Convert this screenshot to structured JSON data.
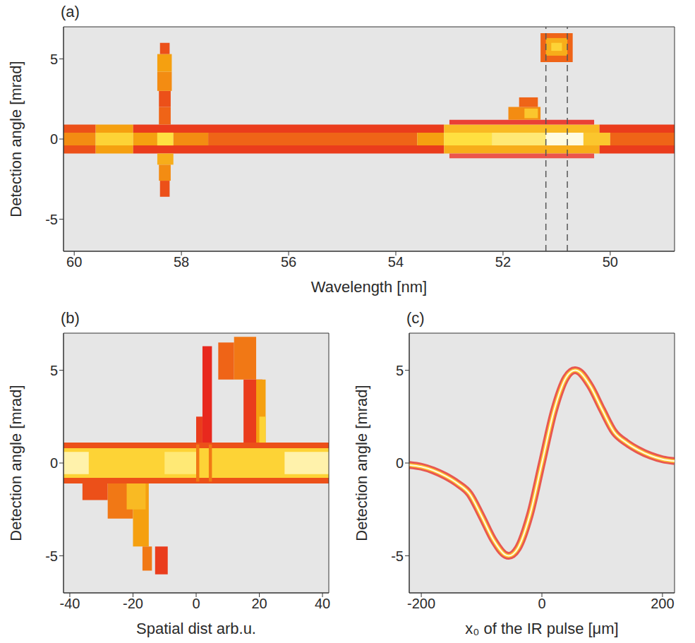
{
  "chart_data": [
    {
      "type": "heatmap",
      "panel_label": "(a)",
      "x_label": "Wavelength [nm]",
      "y_label": "Detection angle [mrad]",
      "xlim": [
        60.2,
        48.8
      ],
      "ylim": [
        -7,
        7
      ],
      "xticks": [
        60,
        58,
        56,
        54,
        52,
        50
      ],
      "yticks": [
        -5,
        0,
        5
      ],
      "zlim": [
        0,
        1
      ],
      "grid": false,
      "vlines": [
        51.2,
        50.8
      ],
      "cells": [
        [
          60.2,
          59.6,
          -0.9,
          -0.4,
          0.4
        ],
        [
          59.6,
          58.9,
          -0.9,
          -0.4,
          0.6
        ],
        [
          58.9,
          53.1,
          -0.9,
          -0.4,
          0.35
        ],
        [
          53.1,
          50.2,
          -0.9,
          -0.4,
          0.65
        ],
        [
          50.2,
          48.8,
          -0.9,
          -0.4,
          0.35
        ],
        [
          60.2,
          59.6,
          0.4,
          0.9,
          0.4
        ],
        [
          59.6,
          58.9,
          0.4,
          0.9,
          0.6
        ],
        [
          58.9,
          53.1,
          0.4,
          0.9,
          0.35
        ],
        [
          53.1,
          50.2,
          0.4,
          0.9,
          0.7
        ],
        [
          50.2,
          48.8,
          0.4,
          0.9,
          0.35
        ],
        [
          60.2,
          59.6,
          -0.4,
          0.4,
          0.55
        ],
        [
          59.6,
          58.9,
          -0.4,
          0.4,
          0.8
        ],
        [
          58.9,
          58.45,
          -0.4,
          0.4,
          0.6
        ],
        [
          58.45,
          58.15,
          -0.4,
          0.4,
          0.85
        ],
        [
          58.15,
          57.5,
          -0.4,
          0.4,
          0.55
        ],
        [
          57.5,
          53.6,
          -0.4,
          0.4,
          0.45
        ],
        [
          53.6,
          53.1,
          -0.4,
          0.4,
          0.6
        ],
        [
          53.1,
          52.2,
          -0.4,
          0.4,
          0.85
        ],
        [
          52.2,
          51.2,
          -0.4,
          0.4,
          0.9
        ],
        [
          51.2,
          50.5,
          -0.4,
          0.4,
          1.0
        ],
        [
          50.5,
          50.0,
          -0.4,
          0.4,
          0.75
        ],
        [
          50.0,
          48.8,
          -0.4,
          0.4,
          0.45
        ],
        [
          53.0,
          50.3,
          0.9,
          1.2,
          0.25
        ],
        [
          53.0,
          50.3,
          -1.2,
          -0.9,
          0.2
        ],
        [
          58.42,
          58.2,
          0.9,
          2.0,
          0.45
        ],
        [
          58.42,
          58.2,
          2.0,
          3.0,
          0.4
        ],
        [
          58.45,
          58.18,
          3.0,
          4.2,
          0.55
        ],
        [
          58.45,
          58.18,
          4.2,
          5.3,
          0.6
        ],
        [
          58.4,
          58.22,
          5.3,
          6.0,
          0.4
        ],
        [
          58.45,
          58.15,
          -1.6,
          -0.9,
          0.65
        ],
        [
          58.42,
          58.2,
          -2.6,
          -1.6,
          0.55
        ],
        [
          58.4,
          58.22,
          -3.6,
          -2.6,
          0.4
        ],
        [
          51.9,
          51.3,
          1.2,
          2.0,
          0.55
        ],
        [
          51.7,
          51.35,
          2.0,
          2.6,
          0.45
        ],
        [
          51.6,
          51.35,
          1.3,
          1.9,
          0.75
        ],
        [
          51.3,
          50.7,
          4.8,
          6.6,
          0.45
        ],
        [
          51.2,
          50.8,
          5.2,
          6.3,
          0.65
        ],
        [
          51.1,
          50.9,
          5.5,
          6.0,
          0.8
        ]
      ]
    },
    {
      "type": "heatmap",
      "panel_label": "(b)",
      "x_label": "Spatial dist arb.u.",
      "y_label": "Detection angle [mrad]",
      "xlim": [
        -42,
        42
      ],
      "ylim": [
        -7,
        7
      ],
      "xticks": [
        -40,
        -20,
        0,
        20,
        40
      ],
      "yticks": [
        -5,
        0,
        5
      ],
      "zlim": [
        0,
        1
      ],
      "grid": false,
      "cells": [
        [
          -42,
          42,
          -1.1,
          -0.8,
          0.4
        ],
        [
          -42,
          42,
          0.8,
          1.1,
          0.4
        ],
        [
          -42,
          42,
          -0.8,
          0.8,
          0.8
        ],
        [
          -42,
          -34,
          -0.6,
          0.6,
          0.95
        ],
        [
          -10,
          0,
          -0.6,
          0.6,
          0.9
        ],
        [
          28,
          42,
          -0.6,
          0.6,
          0.95
        ],
        [
          0,
          1,
          -1,
          1,
          0.5
        ],
        [
          4,
          5,
          -1,
          1,
          0.5
        ],
        [
          -36,
          -28,
          -2,
          -1.1,
          0.4
        ],
        [
          -28,
          -20,
          -3,
          -1.1,
          0.5
        ],
        [
          -20,
          -15,
          -4.5,
          -1.1,
          0.6
        ],
        [
          -17,
          -14,
          -5.8,
          -4.5,
          0.5
        ],
        [
          -13,
          -9,
          -6,
          -4.5,
          0.35
        ],
        [
          -22,
          -16,
          -2.5,
          -1.1,
          0.7
        ],
        [
          0,
          2,
          1.1,
          2.5,
          0.35
        ],
        [
          2,
          5,
          1.1,
          6.3,
          0.3
        ],
        [
          7,
          12,
          4.5,
          6.5,
          0.45
        ],
        [
          12,
          19,
          4.5,
          6.8,
          0.5
        ],
        [
          15,
          21,
          1.1,
          4.5,
          0.35
        ],
        [
          19,
          22,
          1.1,
          4.5,
          0.6
        ],
        [
          20,
          22,
          1.1,
          2.5,
          0.8
        ]
      ]
    },
    {
      "type": "line",
      "panel_label": "(c)",
      "x_label": "x₀ of the IR pulse [μm]",
      "y_label": "Detection angle [mrad]",
      "xlim": [
        -220,
        220
      ],
      "ylim": [
        -7,
        7
      ],
      "xticks": [
        -200,
        0,
        200
      ],
      "yticks": [
        -5,
        0,
        5
      ],
      "grid": false,
      "color": "#e8281e",
      "x": [
        -220,
        -200,
        -180,
        -160,
        -140,
        -120,
        -100,
        -80,
        -60,
        -55,
        -40,
        -20,
        0,
        20,
        40,
        55,
        60,
        80,
        100,
        120,
        140,
        160,
        180,
        200,
        220
      ],
      "values": [
        -0.1,
        -0.2,
        -0.4,
        -0.7,
        -1.1,
        -1.66,
        -2.87,
        -4.16,
        -4.96,
        -5,
        -4.6,
        -2.81,
        0,
        2.81,
        4.6,
        5,
        4.96,
        4.16,
        2.87,
        1.66,
        1.1,
        0.7,
        0.4,
        0.2,
        0.1
      ]
    }
  ]
}
